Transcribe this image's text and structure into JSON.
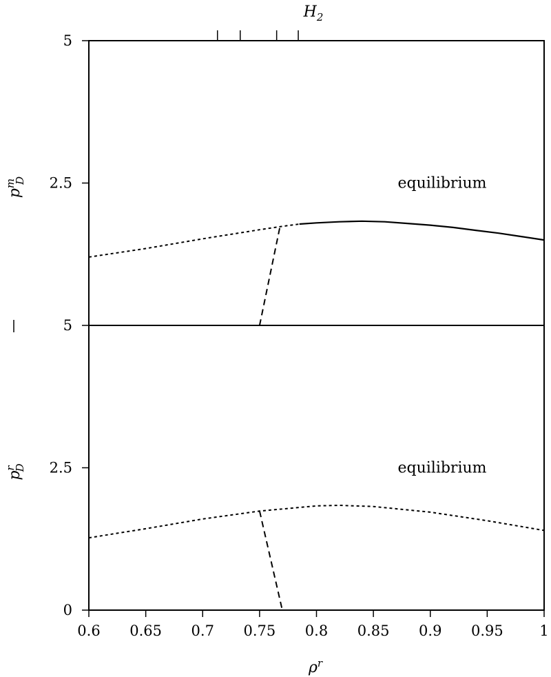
{
  "chart_data": [
    {
      "type": "line",
      "panel": "top",
      "xlim": [
        0.6,
        1.0
      ],
      "ylim": [
        0,
        5
      ],
      "ylabel_main": "p",
      "ylabel_sup": "m",
      "ylabel_sub": "D",
      "top_label_main": "H",
      "top_label_sub": "2",
      "top_ticks_x": [
        0.713,
        0.733,
        0.765,
        0.784
      ],
      "yticks": [
        {
          "value": 2.5,
          "label": "2.5"
        },
        {
          "value": 5,
          "label": "5"
        }
      ],
      "annotation": "equilibrium",
      "annotation_pos": {
        "x": 0.9,
        "y": 2.5
      },
      "series": [
        {
          "style": "dotted",
          "x": [
            0.6,
            0.65,
            0.7,
            0.75,
            0.77,
            0.785
          ],
          "y": [
            1.2,
            1.35,
            1.52,
            1.68,
            1.74,
            1.78
          ]
        },
        {
          "style": "solid",
          "x": [
            0.785,
            0.8,
            0.82,
            0.84,
            0.86,
            0.88,
            0.9,
            0.92,
            0.94,
            0.96,
            0.98,
            1.0
          ],
          "y": [
            1.78,
            1.8,
            1.82,
            1.83,
            1.82,
            1.79,
            1.76,
            1.72,
            1.67,
            1.62,
            1.56,
            1.5
          ]
        },
        {
          "style": "dashed",
          "x": [
            0.75,
            0.768
          ],
          "y": [
            0.0,
            1.74
          ]
        }
      ]
    },
    {
      "type": "line",
      "panel": "bottom",
      "xlim": [
        0.6,
        1.0
      ],
      "ylim": [
        0,
        5
      ],
      "ylabel_main": "p",
      "ylabel_sup": "r",
      "ylabel_sub": "D",
      "xlabel_main": "ρ",
      "xlabel_sup": "r",
      "xticks": [
        {
          "value": 0.6,
          "label": "0.6"
        },
        {
          "value": 0.65,
          "label": "0.65"
        },
        {
          "value": 0.7,
          "label": "0.7"
        },
        {
          "value": 0.75,
          "label": "0.75"
        },
        {
          "value": 0.8,
          "label": "0.8"
        },
        {
          "value": 0.85,
          "label": "0.85"
        },
        {
          "value": 0.9,
          "label": "0.9"
        },
        {
          "value": 0.95,
          "label": "0.95"
        },
        {
          "value": 1.0,
          "label": "1"
        }
      ],
      "yticks": [
        {
          "value": 0,
          "label": "0"
        },
        {
          "value": 2.5,
          "label": "2.5"
        },
        {
          "value": 5,
          "label": "5"
        }
      ],
      "annotation": "equilibrium",
      "annotation_pos": {
        "x": 0.9,
        "y": 2.5
      },
      "series": [
        {
          "style": "dotted",
          "x": [
            0.6,
            0.65,
            0.7,
            0.75,
            0.8,
            0.82,
            0.85,
            0.9,
            0.95,
            1.0
          ],
          "y": [
            1.27,
            1.43,
            1.6,
            1.74,
            1.83,
            1.84,
            1.82,
            1.72,
            1.57,
            1.4
          ]
        },
        {
          "style": "dashed",
          "x": [
            0.75,
            0.77
          ],
          "y": [
            1.74,
            0.0
          ]
        }
      ]
    }
  ]
}
